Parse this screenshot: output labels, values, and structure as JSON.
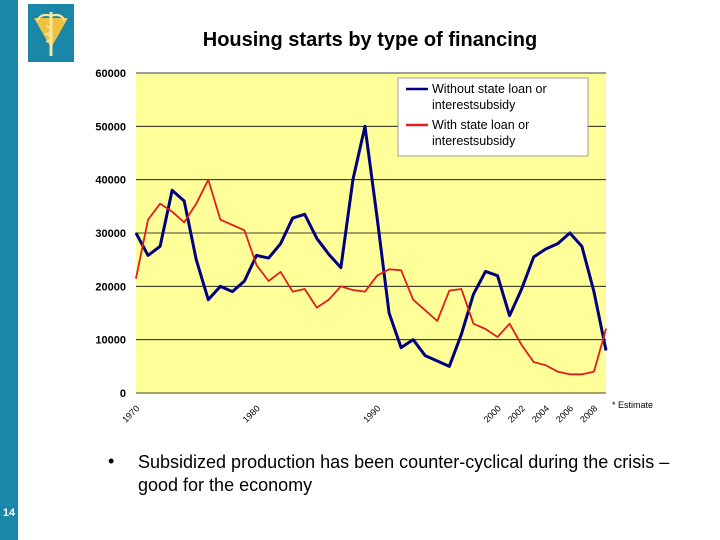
{
  "slide": {
    "page_number": "14",
    "bullet_symbol": "•",
    "bullet_text": "Subsidized production has been counter-cyclical during the crisis – good for the economy"
  },
  "colors": {
    "brand": "#1a86a8",
    "plot_area": "#ffff99",
    "without": "#000080",
    "with": "#e41c1c"
  },
  "chart_data": {
    "type": "line",
    "title": "Housing starts by type of financing",
    "annotation": "* Estimate",
    "x_ticks": [
      "1970",
      "1980",
      "1990",
      "2000",
      "2002",
      "2004",
      "2006",
      "2008"
    ],
    "x": [
      1970,
      1971,
      1972,
      1973,
      1974,
      1975,
      1976,
      1977,
      1978,
      1979,
      1980,
      1981,
      1982,
      1983,
      1984,
      1985,
      1986,
      1987,
      1988,
      1989,
      1990,
      1991,
      1992,
      1993,
      1994,
      1995,
      1996,
      1997,
      1998,
      1999,
      2000,
      2001,
      2002,
      2003,
      2004,
      2005,
      2006,
      2007,
      2008,
      2009
    ],
    "xlim": [
      1970,
      2009
    ],
    "ylim": [
      0,
      60000
    ],
    "y_ticks": [
      0,
      10000,
      20000,
      30000,
      40000,
      50000,
      60000
    ],
    "grid": "horizontal",
    "legend_position": "top-right",
    "series": [
      {
        "name": "Without state loan or interestsubsidy",
        "color": "#000080",
        "values": [
          30000,
          25800,
          27500,
          38000,
          36000,
          25000,
          17500,
          20000,
          19000,
          21000,
          25800,
          25300,
          28000,
          32800,
          33500,
          29000,
          26000,
          23500,
          40000,
          50000,
          33000,
          15000,
          8500,
          10000,
          7000,
          6000,
          5000,
          11000,
          18500,
          22800,
          22000,
          14500,
          19500,
          25500,
          27000,
          28000,
          30000,
          27500,
          19000,
          8000
        ]
      },
      {
        "name": "With state loan or interestsubsidy",
        "color": "#e41c1c",
        "values": [
          21500,
          32500,
          35500,
          34000,
          32000,
          35500,
          40000,
          32500,
          31500,
          30500,
          24000,
          21000,
          22700,
          19000,
          19500,
          16000,
          17500,
          20000,
          19300,
          19000,
          22000,
          23200,
          23000,
          17500,
          15500,
          13500,
          19200,
          19500,
          13000,
          12000,
          10500,
          13000,
          9000,
          5800,
          5200,
          4000,
          3500,
          3500,
          4000,
          12000
        ]
      }
    ]
  }
}
